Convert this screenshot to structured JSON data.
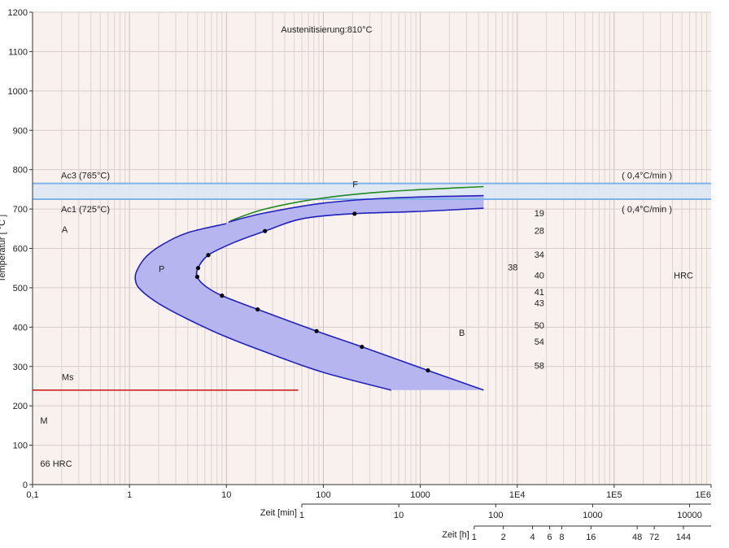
{
  "chart_data": {
    "type": "line",
    "title": "Austenitisierung:810°C",
    "x_scale": "log",
    "xlim": [
      0.1,
      1000000
    ],
    "ylim": [
      0,
      1200
    ],
    "grid": true,
    "x_ticks": [
      {
        "value": 0.1,
        "label": "0,1"
      },
      {
        "value": 1,
        "label": "1"
      },
      {
        "value": 10,
        "label": "10"
      },
      {
        "value": 100,
        "label": "100"
      },
      {
        "value": 1000,
        "label": "1000"
      },
      {
        "value": 10000,
        "label": "1E4"
      },
      {
        "value": 100000,
        "label": "1E5"
      },
      {
        "value": 1000000,
        "label": "1E6"
      }
    ],
    "y_ticks": [
      0,
      100,
      200,
      300,
      400,
      500,
      600,
      700,
      800,
      900,
      1000,
      1100,
      1200
    ],
    "ylabel": "Temperatur [ °C ]",
    "minutes_axis": {
      "label": "Zeit [min]",
      "ticks": [
        {
          "value": 1,
          "label": "1"
        },
        {
          "value": 10,
          "label": "10"
        },
        {
          "value": 100,
          "label": "100"
        },
        {
          "value": 1000,
          "label": "1000"
        },
        {
          "value": 10000,
          "label": "10000"
        }
      ]
    },
    "hours_axis": {
      "label": "Zeit [h]",
      "ticks": [
        {
          "value": 1,
          "label": "1"
        },
        {
          "value": 2,
          "label": "2"
        },
        {
          "value": 4,
          "label": "4"
        },
        {
          "value": 6,
          "label": "6"
        },
        {
          "value": 8,
          "label": "8"
        },
        {
          "value": 16,
          "label": "16"
        },
        {
          "value": 48,
          "label": "48"
        },
        {
          "value": 72,
          "label": "72"
        },
        {
          "value": 144,
          "label": "144"
        }
      ]
    },
    "reference_lines": [
      {
        "name": "Ac3",
        "label": "Ac3 (765°C)",
        "y": 765,
        "rate_label": "( 0,4°C/min )"
      },
      {
        "name": "Ac1",
        "label": "Ac1 (725°C)",
        "y": 725,
        "rate_label": "( 0,4°C/min )"
      }
    ],
    "ms": {
      "label": "Ms",
      "y": 240,
      "x_end": 55
    },
    "series": [
      {
        "kind": "ferrite_start",
        "color": "#228822",
        "points": [
          [
            11,
            670
          ],
          [
            25,
            700
          ],
          [
            100,
            728
          ],
          [
            500,
            745
          ],
          [
            4500,
            757
          ]
        ]
      },
      {
        "kind": "start",
        "color": "#2222bb",
        "points": [
          [
            10.5,
            667
          ],
          [
            25,
            690
          ],
          [
            100,
            715
          ],
          [
            500,
            728
          ],
          [
            4500,
            734
          ]
        ]
      },
      {
        "kind": "end",
        "color": "#2222bb",
        "points": [
          [
            4500,
            702
          ],
          [
            1000,
            694
          ],
          [
            200,
            688
          ],
          [
            60,
            675
          ],
          [
            25,
            644
          ],
          [
            12,
            615
          ],
          [
            6.5,
            583
          ],
          [
            5.1,
            550
          ],
          [
            5,
            528
          ],
          [
            6,
            505
          ],
          [
            9,
            480
          ],
          [
            21,
            445
          ],
          [
            85,
            390
          ],
          [
            250,
            350
          ],
          [
            1200,
            290
          ],
          [
            4500,
            240
          ]
        ]
      },
      {
        "kind": "nose",
        "color": "#2222bb",
        "points": [
          [
            10,
            663
          ],
          [
            4,
            640
          ],
          [
            2.2,
            610
          ],
          [
            1.5,
            580
          ],
          [
            1.2,
            545
          ],
          [
            1.15,
            520
          ],
          [
            1.3,
            495
          ],
          [
            2,
            460
          ],
          [
            4,
            420
          ],
          [
            10,
            375
          ],
          [
            30,
            330
          ],
          [
            100,
            285
          ],
          [
            500,
            240
          ]
        ]
      }
    ],
    "measured_points": [
      [
        210,
        688
      ],
      [
        25,
        644
      ],
      [
        6.5,
        583
      ],
      [
        5.1,
        550
      ],
      [
        5,
        528
      ],
      [
        9,
        480
      ],
      [
        21,
        445
      ],
      [
        85,
        390
      ],
      [
        250,
        350
      ],
      [
        1200,
        290
      ]
    ],
    "annotations": [
      {
        "text": "A",
        "x": 0.2,
        "y": 640
      },
      {
        "text": "F",
        "x": 200,
        "y": 755
      },
      {
        "text": "P",
        "x": 2,
        "y": 540
      },
      {
        "text": "B",
        "x": 2500,
        "y": 378
      },
      {
        "text": "Ms",
        "x": 0.2,
        "y": 265
      },
      {
        "text": "M",
        "x": 0.12,
        "y": 155
      },
      {
        "text": "66 HRC",
        "x": 0.12,
        "y": 45
      }
    ],
    "hardness_values": [
      {
        "text": "19",
        "y": 690
      },
      {
        "text": "28",
        "y": 645
      },
      {
        "text": "34",
        "y": 585
      },
      {
        "text": "38",
        "y": 552,
        "x": 8000
      },
      {
        "text": "40",
        "y": 532
      },
      {
        "text": "41",
        "y": 490
      },
      {
        "text": "43",
        "y": 462
      },
      {
        "text": "50",
        "y": 405
      },
      {
        "text": "54",
        "y": 363
      },
      {
        "text": "58",
        "y": 303
      }
    ],
    "hardness_x": 15000,
    "hardness_unit": {
      "text": "HRC",
      "x": 500000,
      "y": 532
    }
  }
}
